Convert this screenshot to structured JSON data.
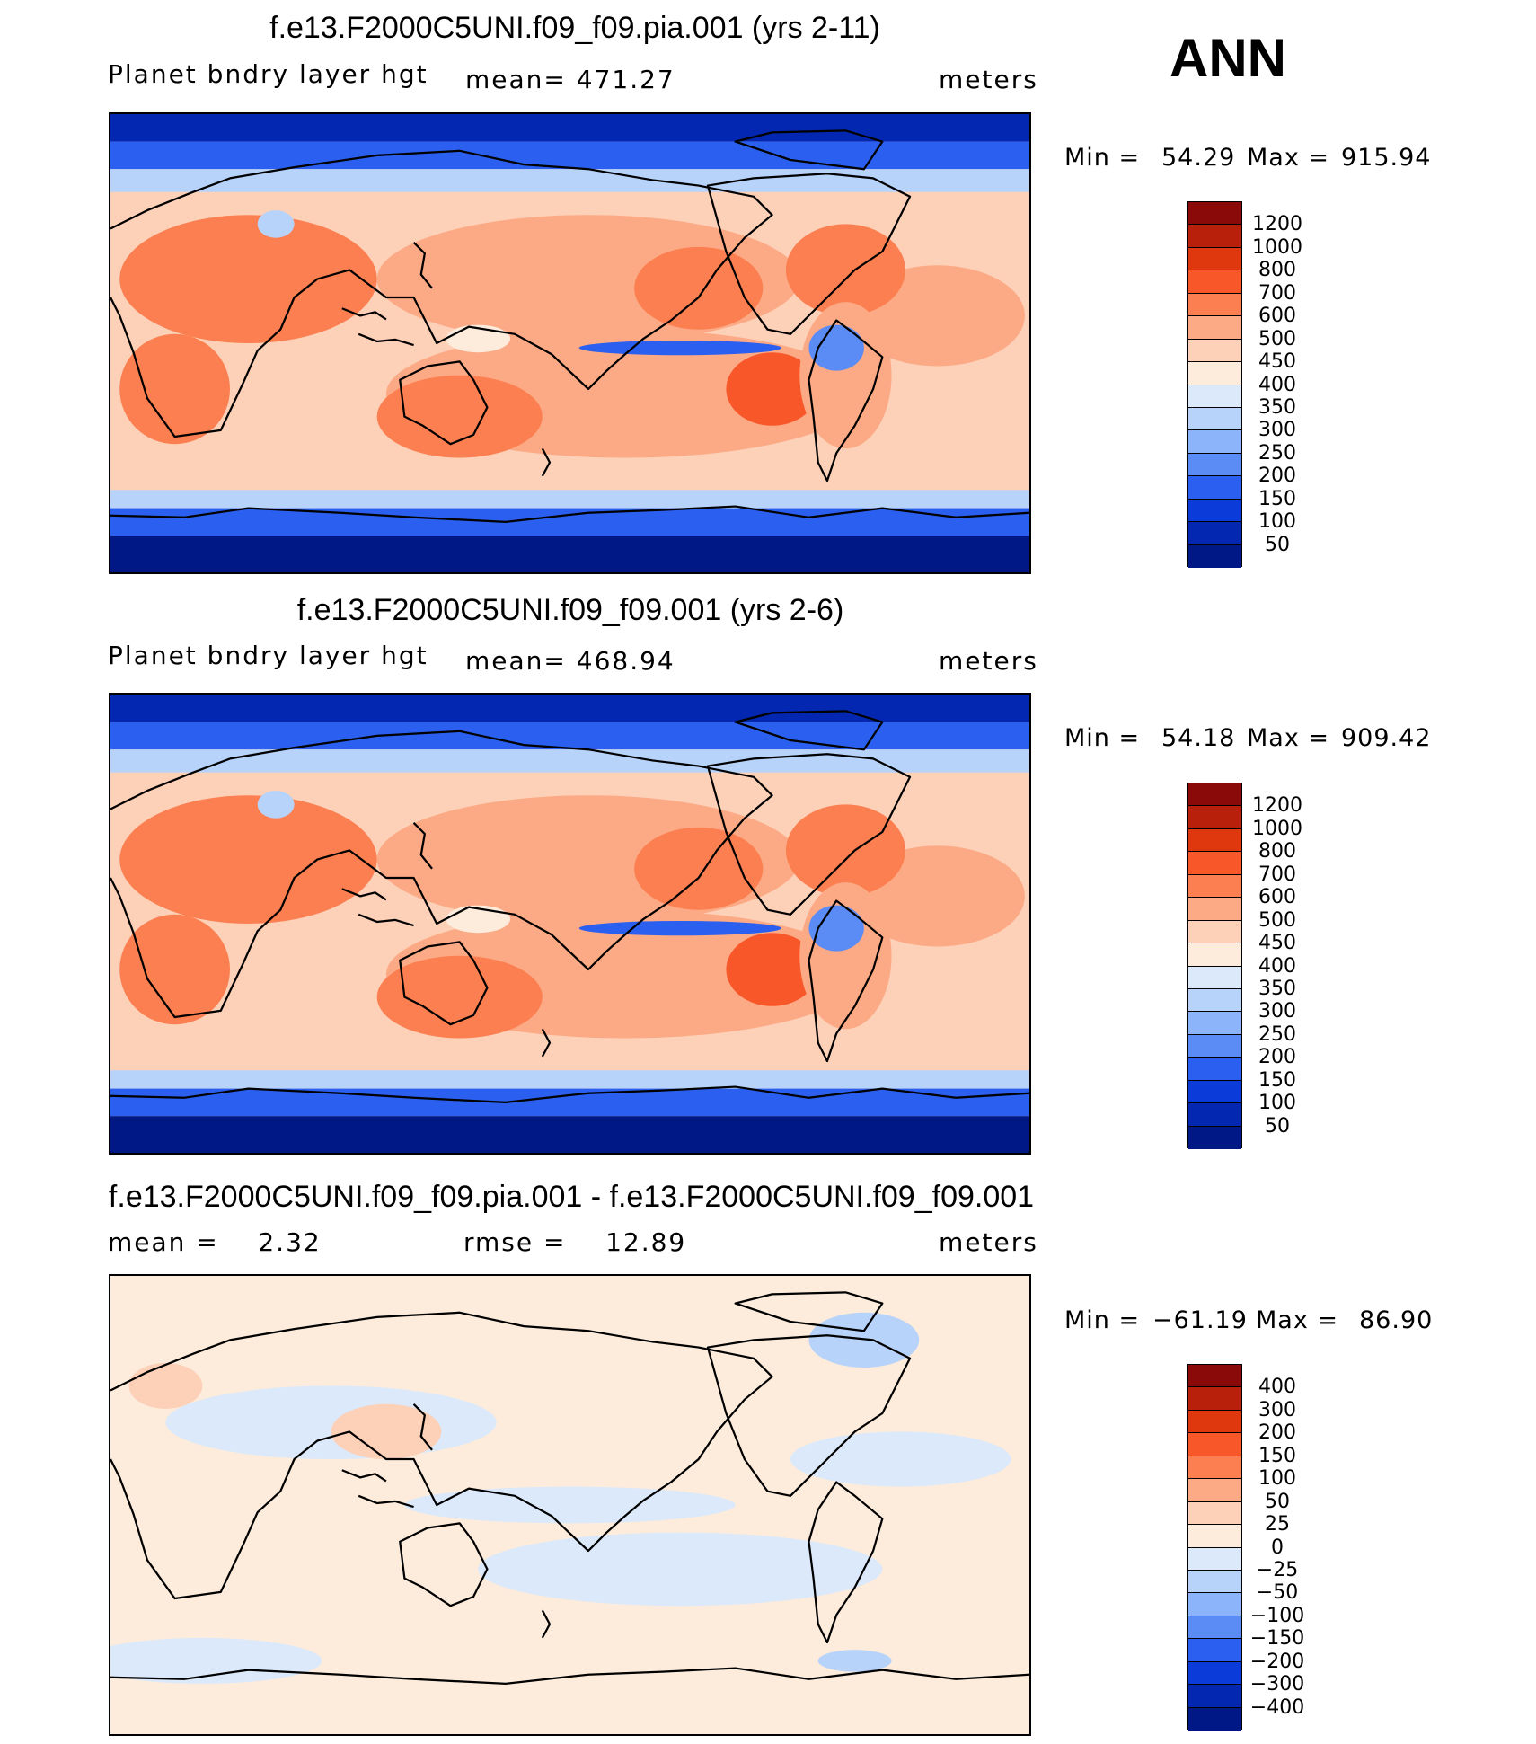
{
  "season": "ANN",
  "panels": [
    {
      "title": "f.e13.F2000C5UNI.f09_f09.pia.001 (yrs 2-11)",
      "left_label": "Planet bndry layer hgt",
      "stat_label": "mean= 471.27",
      "units": "meters",
      "min_label": "Min =",
      "min_value": "54.29",
      "max_label": "Max =",
      "max_value": "915.94",
      "colorbar_labels": [
        "1200",
        "1000",
        "800",
        "700",
        "600",
        "500",
        "450",
        "400",
        "350",
        "300",
        "250",
        "200",
        "150",
        "100",
        "50"
      ],
      "colorbar_colors": [
        "#8a0a0a",
        "#b8200c",
        "#e0380e",
        "#f8572a",
        "#fb7f50",
        "#fcaa85",
        "#fdd0b8",
        "#fdecdc",
        "#dbe9fa",
        "#b8d3fa",
        "#8cb4fa",
        "#5b8cf5",
        "#2a5ff0",
        "#0b3bd8",
        "#0327b0",
        "#001786"
      ]
    },
    {
      "title": "f.e13.F2000C5UNI.f09_f09.001 (yrs 2-6)",
      "left_label": "Planet bndry layer hgt",
      "stat_label": "mean= 468.94",
      "units": "meters",
      "min_label": "Min =",
      "min_value": "54.18",
      "max_label": "Max =",
      "max_value": "909.42",
      "colorbar_labels": [
        "1200",
        "1000",
        "800",
        "700",
        "600",
        "500",
        "450",
        "400",
        "350",
        "300",
        "250",
        "200",
        "150",
        "100",
        "50"
      ],
      "colorbar_colors": [
        "#8a0a0a",
        "#b8200c",
        "#e0380e",
        "#f8572a",
        "#fb7f50",
        "#fcaa85",
        "#fdd0b8",
        "#fdecdc",
        "#dbe9fa",
        "#b8d3fa",
        "#8cb4fa",
        "#5b8cf5",
        "#2a5ff0",
        "#0b3bd8",
        "#0327b0",
        "#001786"
      ]
    },
    {
      "title": "f.e13.F2000C5UNI.f09_f09.pia.001 - f.e13.F2000C5UNI.f09_f09.001",
      "left_label": "mean =    2.32",
      "stat_label": "rmse =    12.89",
      "units": "meters",
      "min_label": "Min =",
      "min_value": "−61.19",
      "max_label": "Max =",
      "max_value": "86.90",
      "colorbar_labels": [
        "400",
        "300",
        "200",
        "150",
        "100",
        "50",
        "25",
        "0",
        "−25",
        "−50",
        "−100",
        "−150",
        "−200",
        "−300",
        "−400"
      ],
      "colorbar_colors": [
        "#8a0a0a",
        "#b8200c",
        "#e0380e",
        "#f8572a",
        "#fb7f50",
        "#fcaa85",
        "#fdd0b8",
        "#fdecdc",
        "#dbe9fa",
        "#b8d3fa",
        "#8cb4fa",
        "#5b8cf5",
        "#2a5ff0",
        "#0b3bd8",
        "#0327b0",
        "#001786"
      ]
    }
  ],
  "map_palette": {
    "ocean_tropics": "#fcaa85",
    "pale": "#fdd0b8",
    "cream": "#fdecdc",
    "orange": "#fb7f50",
    "red": "#f8572a",
    "light_blue": "#b8d3fa",
    "mid_blue": "#5b8cf5",
    "blue": "#2a5ff0",
    "deep_blue": "#0327b0",
    "navy": "#001786",
    "diff_base": "#fdecdc",
    "diff_blue": "#dbe9fa",
    "diff_blue2": "#b8d3fa",
    "diff_pink": "#fdd0b8",
    "coast": "#000000"
  }
}
